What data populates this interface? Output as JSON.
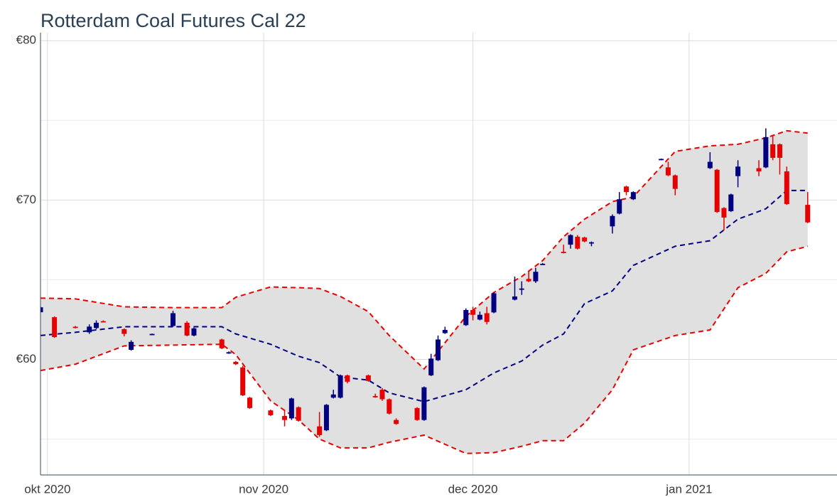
{
  "chart_data": {
    "type": "candlestick",
    "title": "Rotterdam Coal Futures Cal 22",
    "up_color": "#000080",
    "down_color": "#e60000",
    "band_fill": "#e0e0e0",
    "band_color": "#e60000",
    "middle_color": "#000080",
    "grid": true,
    "xlim": [
      "2020-09-30",
      "2021-01-22"
    ],
    "xticks": [
      {
        "value": "2020-10-01",
        "label": "okt 2020"
      },
      {
        "value": "2020-11-01",
        "label": "nov 2020"
      },
      {
        "value": "2020-12-01",
        "label": "dec 2020"
      },
      {
        "value": "2021-01-01",
        "label": "jan 2021"
      }
    ],
    "ylim": [
      52.75,
      80.5
    ],
    "yticks": [
      {
        "value": 60,
        "label": "€60"
      },
      {
        "value": 70,
        "label": "€70"
      },
      {
        "value": 80,
        "label": "€80"
      }
    ],
    "yticks_minor": [
      55,
      65,
      75
    ],
    "candles": {
      "date": [
        "2020-09-30",
        "2020-10-02",
        "2020-10-05",
        "2020-10-07",
        "2020-10-08",
        "2020-10-09",
        "2020-10-12",
        "2020-10-13",
        "2020-10-16",
        "2020-10-19",
        "2020-10-21",
        "2020-10-22",
        "2020-10-26",
        "2020-10-27",
        "2020-10-28",
        "2020-10-29",
        "2020-10-30",
        "2020-11-02",
        "2020-11-04",
        "2020-11-05",
        "2020-11-06",
        "2020-11-09",
        "2020-11-10",
        "2020-11-11",
        "2020-11-12",
        "2020-11-13",
        "2020-11-16",
        "2020-11-17",
        "2020-11-18",
        "2020-11-19",
        "2020-11-20",
        "2020-11-23",
        "2020-11-24",
        "2020-11-25",
        "2020-11-26",
        "2020-11-27",
        "2020-11-30",
        "2020-12-01",
        "2020-12-02",
        "2020-12-03",
        "2020-12-04",
        "2020-12-07",
        "2020-12-08",
        "2020-12-09",
        "2020-12-10",
        "2020-12-11",
        "2020-12-14",
        "2020-12-15",
        "2020-12-16",
        "2020-12-17",
        "2020-12-18",
        "2020-12-21",
        "2020-12-22",
        "2020-12-23",
        "2020-12-24",
        "2020-12-28",
        "2020-12-29",
        "2020-12-30",
        "2021-01-04",
        "2021-01-05",
        "2021-01-06",
        "2021-01-07",
        "2021-01-08",
        "2021-01-11",
        "2021-01-12",
        "2021-01-13",
        "2021-01-14",
        "2021-01-15",
        "2021-01-18"
      ],
      "open": [
        62.96,
        62.65,
        62.05,
        61.7,
        61.97,
        62.4,
        61.9,
        60.6,
        61.58,
        62.1,
        62.3,
        61.5,
        61.25,
        60.4,
        59.85,
        59.5,
        57.6,
        56.8,
        56.45,
        56.3,
        57.0,
        55.8,
        55.55,
        57.6,
        57.6,
        59.0,
        59.0,
        57.7,
        58.1,
        57.5,
        56.2,
        56.95,
        56.2,
        59.0,
        59.95,
        61.65,
        62.15,
        63.1,
        62.5,
        62.9,
        62.95,
        63.75,
        64.4,
        65.05,
        64.9,
        65.98,
        66.75,
        67.2,
        67.7,
        67.65,
        67.3,
        68.35,
        69.15,
        70.85,
        70.05,
        72.55,
        72.05,
        71.55,
        72.0,
        71.9,
        69.5,
        69.3,
        71.5,
        72.0,
        72.05,
        73.5,
        73.5,
        71.8,
        69.7
      ],
      "high": [
        63.3,
        62.7,
        62.1,
        62.2,
        62.45,
        62.45,
        61.95,
        61.2,
        61.62,
        63.05,
        62.4,
        62.0,
        61.3,
        60.5,
        59.9,
        59.6,
        57.65,
        56.85,
        56.8,
        57.6,
        57.05,
        56.7,
        57.2,
        58.1,
        59.05,
        59.05,
        59.05,
        57.85,
        58.2,
        57.55,
        56.3,
        57.0,
        58.3,
        60.35,
        61.5,
        62.05,
        63.2,
        63.3,
        63.0,
        63.3,
        64.2,
        65.2,
        64.9,
        65.5,
        65.75,
        66.05,
        67.2,
        67.85,
        67.8,
        67.7,
        67.4,
        69.1,
        70.5,
        70.9,
        70.55,
        72.6,
        72.4,
        71.6,
        73.0,
        71.95,
        69.55,
        70.4,
        72.5,
        72.5,
        74.5,
        74.0,
        73.55,
        72.1,
        70.5
      ],
      "low": [
        62.95,
        61.35,
        61.95,
        61.6,
        61.9,
        62.35,
        61.45,
        60.55,
        61.56,
        62.05,
        61.45,
        61.45,
        60.65,
        60.35,
        59.65,
        57.7,
        56.9,
        56.45,
        55.8,
        56.2,
        56.1,
        55.15,
        55.5,
        57.55,
        57.55,
        58.5,
        58.6,
        57.6,
        57.4,
        56.55,
        55.9,
        56.15,
        56.15,
        58.95,
        59.9,
        61.6,
        62.1,
        62.45,
        62.45,
        62.2,
        62.9,
        63.7,
        64.05,
        64.85,
        64.8,
        65.95,
        66.65,
        66.95,
        66.9,
        67.35,
        67.1,
        67.9,
        69.1,
        70.3,
        70.0,
        72.5,
        71.5,
        70.3,
        71.95,
        69.2,
        68.1,
        69.25,
        70.8,
        71.5,
        72.0,
        72.5,
        71.6,
        69.7,
        68.55
      ],
      "close": [
        63.27,
        61.4,
        62.0,
        62.06,
        62.3,
        62.38,
        61.6,
        61.1,
        61.6,
        62.9,
        61.5,
        61.95,
        60.7,
        60.45,
        59.7,
        57.75,
        56.95,
        56.5,
        56.2,
        57.55,
        56.15,
        55.25,
        57.15,
        57.8,
        59.0,
        58.6,
        58.65,
        57.65,
        57.5,
        56.6,
        55.95,
        56.2,
        58.25,
        60.05,
        61.25,
        61.85,
        63.1,
        62.8,
        62.8,
        62.35,
        64.15,
        63.95,
        64.45,
        64.9,
        65.5,
        66.0,
        66.7,
        67.8,
        66.95,
        67.4,
        67.35,
        69.0,
        70.05,
        70.5,
        70.5,
        72.58,
        71.55,
        70.7,
        72.4,
        69.25,
        68.9,
        70.35,
        72.1,
        71.8,
        73.95,
        72.65,
        72.65,
        69.75,
        68.6
      ]
    },
    "bands": {
      "date": [
        "2020-09-30",
        "2020-10-05",
        "2020-10-12",
        "2020-10-19",
        "2020-10-26",
        "2020-10-28",
        "2020-11-02",
        "2020-11-06",
        "2020-11-09",
        "2020-11-12",
        "2020-11-16",
        "2020-11-19",
        "2020-11-24",
        "2020-11-30",
        "2020-12-04",
        "2020-12-08",
        "2020-12-11",
        "2020-12-14",
        "2020-12-17",
        "2020-12-21",
        "2020-12-24",
        "2020-12-30",
        "2021-01-04",
        "2021-01-08",
        "2021-01-12",
        "2021-01-15",
        "2021-01-18"
      ],
      "upper": [
        63.85,
        63.8,
        63.3,
        63.25,
        63.25,
        63.9,
        64.55,
        64.5,
        64.45,
        63.95,
        63.0,
        61.5,
        59.4,
        62.7,
        64.2,
        65.2,
        66.2,
        67.7,
        68.8,
        69.9,
        70.2,
        73.05,
        73.4,
        73.5,
        73.9,
        74.35,
        74.2
      ],
      "middle": [
        61.5,
        61.7,
        62.05,
        62.05,
        62.05,
        61.6,
        60.95,
        60.2,
        59.8,
        58.9,
        58.7,
        57.9,
        57.35,
        58.1,
        59.15,
        59.9,
        60.9,
        61.6,
        63.5,
        64.3,
        65.9,
        67.1,
        67.45,
        68.8,
        69.45,
        70.6,
        70.6
      ],
      "lower": [
        59.3,
        59.7,
        60.85,
        60.9,
        60.95,
        60.3,
        57.4,
        56.2,
        55.0,
        54.45,
        54.45,
        54.8,
        55.25,
        54.1,
        54.15,
        54.55,
        54.9,
        54.9,
        56.0,
        58.1,
        60.6,
        61.5,
        61.85,
        64.5,
        65.4,
        66.75,
        67.1
      ]
    }
  }
}
